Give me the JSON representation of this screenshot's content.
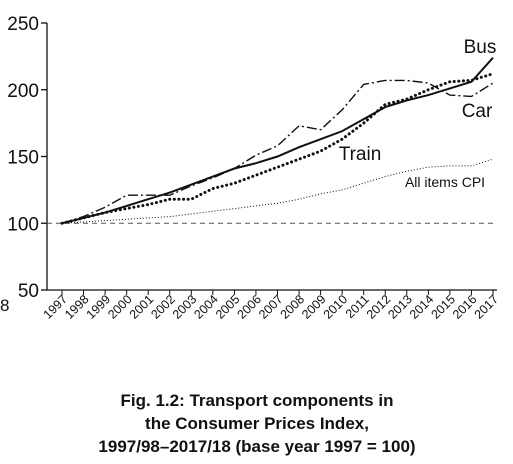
{
  "chart_data": {
    "type": "line",
    "caption": [
      "Fig. 1.2: Transport components in",
      "the Consumer Prices Index,",
      "1997/98–2017/18 (base year 1997 = 100)"
    ],
    "edge_text": "8",
    "x": [
      1997,
      1998,
      1999,
      2000,
      2001,
      2002,
      2003,
      2004,
      2005,
      2006,
      2007,
      2008,
      2009,
      2010,
      2011,
      2012,
      2013,
      2014,
      2015,
      2016,
      2017
    ],
    "xlim": [
      1997,
      2017
    ],
    "xticks": [
      1997,
      1998,
      1999,
      2000,
      2001,
      2002,
      2003,
      2004,
      2005,
      2006,
      2007,
      2008,
      2009,
      2010,
      2011,
      2012,
      2013,
      2014,
      2015,
      2016,
      2017
    ],
    "ylim": [
      50,
      250
    ],
    "yticks": [
      50,
      100,
      150,
      200,
      250
    ],
    "baseline": 100,
    "series": [
      {
        "name": "Bus",
        "color": "#111111",
        "style": "solid",
        "values": [
          100,
          104,
          108,
          113,
          118,
          123,
          129,
          135,
          141,
          145,
          150,
          157,
          163,
          169,
          178,
          187,
          192,
          196,
          201,
          206,
          224
        ]
      },
      {
        "name": "Car",
        "color": "#111111",
        "style": "dashdot",
        "values": [
          100,
          105,
          112,
          121,
          121,
          121,
          128,
          134,
          141,
          151,
          158,
          173,
          170,
          185,
          204,
          207,
          207,
          205,
          196,
          195,
          205
        ]
      },
      {
        "name": "Train",
        "color": "#111111",
        "style": "dotted",
        "values": [
          100,
          104,
          108,
          111,
          114,
          118,
          118,
          126,
          130,
          136,
          142,
          148,
          154,
          163,
          175,
          189,
          193,
          200,
          206,
          207,
          212
        ]
      },
      {
        "name": "All items CPI",
        "color": "#111111",
        "style": "thin",
        "values": [
          100,
          101,
          102,
          103,
          104,
          105,
          107,
          109,
          111,
          113,
          115,
          118,
          122,
          125,
          130,
          135,
          139,
          142,
          143,
          143,
          148
        ]
      }
    ]
  }
}
